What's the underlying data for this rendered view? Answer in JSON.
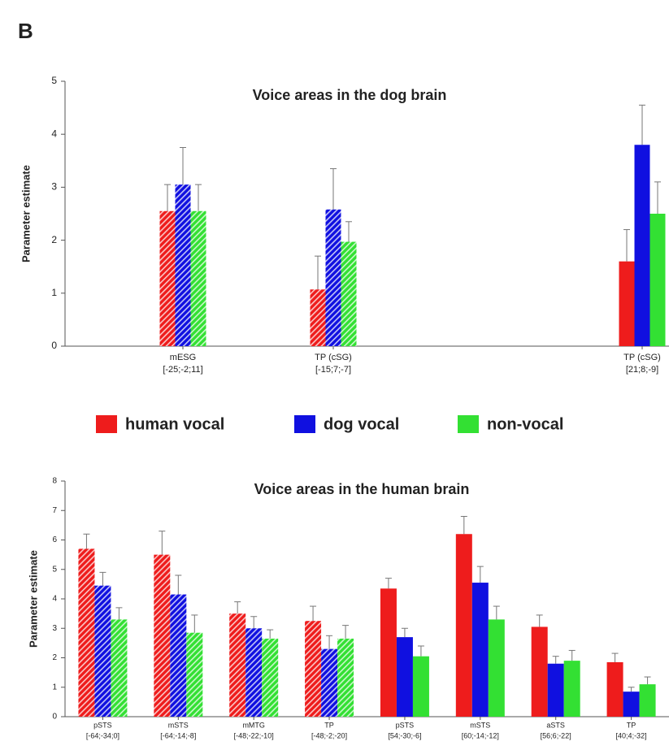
{
  "panel_label": "B",
  "chart_data": [
    {
      "type": "bar",
      "title": "Voice areas in the dog brain",
      "y_label": "Parameter estimate",
      "categories": [
        "mESG",
        "TP (cSG)",
        "TP (cSG)"
      ],
      "category_coords": [
        "[-25;-2;11]",
        "[-15;7;-7]",
        "[21;8;-9]"
      ],
      "hatch": [
        true,
        true,
        false
      ],
      "series": [
        {
          "name": "human vocal",
          "color": "#ee1c1c",
          "values": [
            2.55,
            1.07,
            1.6
          ],
          "errors": [
            0.5,
            0.63,
            0.6
          ]
        },
        {
          "name": "dog vocal",
          "color": "#1010e0",
          "values": [
            3.05,
            2.58,
            3.8
          ],
          "errors": [
            0.7,
            0.77,
            0.75
          ]
        },
        {
          "name": "non-vocal",
          "color": "#33e033",
          "values": [
            2.55,
            1.97,
            2.5
          ],
          "errors": [
            0.5,
            0.38,
            0.6
          ]
        }
      ],
      "ylim": [
        0,
        5
      ],
      "yticks": [
        0,
        1,
        2,
        3,
        4,
        5
      ]
    },
    {
      "type": "bar",
      "title": "Voice areas in the human brain",
      "y_label": "Parameter estimate",
      "categories": [
        "pSTS",
        "mSTS",
        "mMTG",
        "TP",
        "pSTS",
        "mSTS",
        "aSTS",
        "TP"
      ],
      "category_coords": [
        "[-64;-34;0]",
        "[-64;-14;-8]",
        "[-48;-22;-10]",
        "[-48;-2;-20]",
        "[54;-30;-6]",
        "[60;-14;-12]",
        "[56;6;-22]",
        "[40;4;-32]"
      ],
      "hatch": [
        true,
        true,
        true,
        true,
        false,
        false,
        false,
        false
      ],
      "series": [
        {
          "color": "#ee1c1c",
          "values": [
            5.7,
            5.5,
            3.5,
            3.25,
            4.35,
            6.2,
            3.05,
            1.85
          ],
          "errors": [
            0.5,
            0.8,
            0.4,
            0.5,
            0.35,
            0.6,
            0.4,
            0.3
          ]
        },
        {
          "color": "#1010e0",
          "values": [
            4.45,
            4.15,
            3.0,
            2.3,
            2.7,
            4.55,
            1.8,
            0.85
          ],
          "errors": [
            0.45,
            0.65,
            0.4,
            0.45,
            0.3,
            0.55,
            0.25,
            0.15
          ]
        },
        {
          "color": "#33e033",
          "values": [
            3.3,
            2.85,
            2.65,
            2.65,
            2.05,
            3.3,
            1.9,
            1.1
          ],
          "errors": [
            0.4,
            0.6,
            0.3,
            0.45,
            0.35,
            0.45,
            0.35,
            0.25
          ]
        }
      ],
      "ylim": [
        0,
        8
      ],
      "yticks": [
        0,
        1,
        2,
        3,
        4,
        5,
        6,
        7,
        8
      ]
    }
  ]
}
